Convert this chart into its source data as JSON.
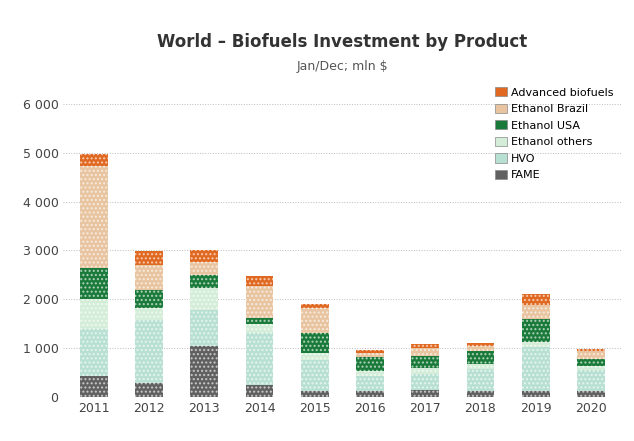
{
  "years": [
    2011,
    2012,
    2013,
    2014,
    2015,
    2016,
    2017,
    2018,
    2019,
    2020
  ],
  "title": "World – Biofuels Investment by Product",
  "subtitle": "Jan/Dec; mln $",
  "ylim": [
    0,
    6500
  ],
  "yticks": [
    0,
    1000,
    2000,
    3000,
    4000,
    5000,
    6000
  ],
  "ytick_labels": [
    "0",
    "1 000",
    "2 000",
    "3 000",
    "4 000",
    "5 000",
    "6 000"
  ],
  "series": {
    "FAME": {
      "values": [
        420,
        290,
        1050,
        250,
        130,
        130,
        150,
        130,
        130,
        120
      ],
      "color": "#606060"
    },
    "HVO": {
      "values": [
        980,
        1280,
        730,
        1050,
        620,
        290,
        320,
        440,
        900,
        440
      ],
      "color": "#b8e0d2"
    },
    "Ethanol others": {
      "values": [
        600,
        260,
        440,
        200,
        150,
        110,
        130,
        110,
        100,
        80
      ],
      "color": "#d4edd8"
    },
    "Ethanol USA": {
      "values": [
        630,
        360,
        280,
        120,
        400,
        290,
        240,
        250,
        470,
        130
      ],
      "color": "#1a7a3a"
    },
    "Ethanol Brazil": {
      "values": [
        2100,
        500,
        270,
        650,
        520,
        80,
        170,
        110,
        280,
        170
      ],
      "color": "#e8c4a0"
    },
    "Advanced biofuels": {
      "values": [
        250,
        290,
        230,
        200,
        80,
        50,
        70,
        70,
        220,
        50
      ],
      "color": "#e06820"
    }
  },
  "series_order": [
    "FAME",
    "HVO",
    "Ethanol others",
    "Ethanol USA",
    "Ethanol Brazil",
    "Advanced biofuels"
  ],
  "legend_order": [
    "Advanced biofuels",
    "Ethanol Brazil",
    "Ethanol USA",
    "Ethanol others",
    "HVO",
    "FAME"
  ],
  "background_color": "#ffffff",
  "grid_color": "#bbbbbb",
  "bar_width": 0.5
}
